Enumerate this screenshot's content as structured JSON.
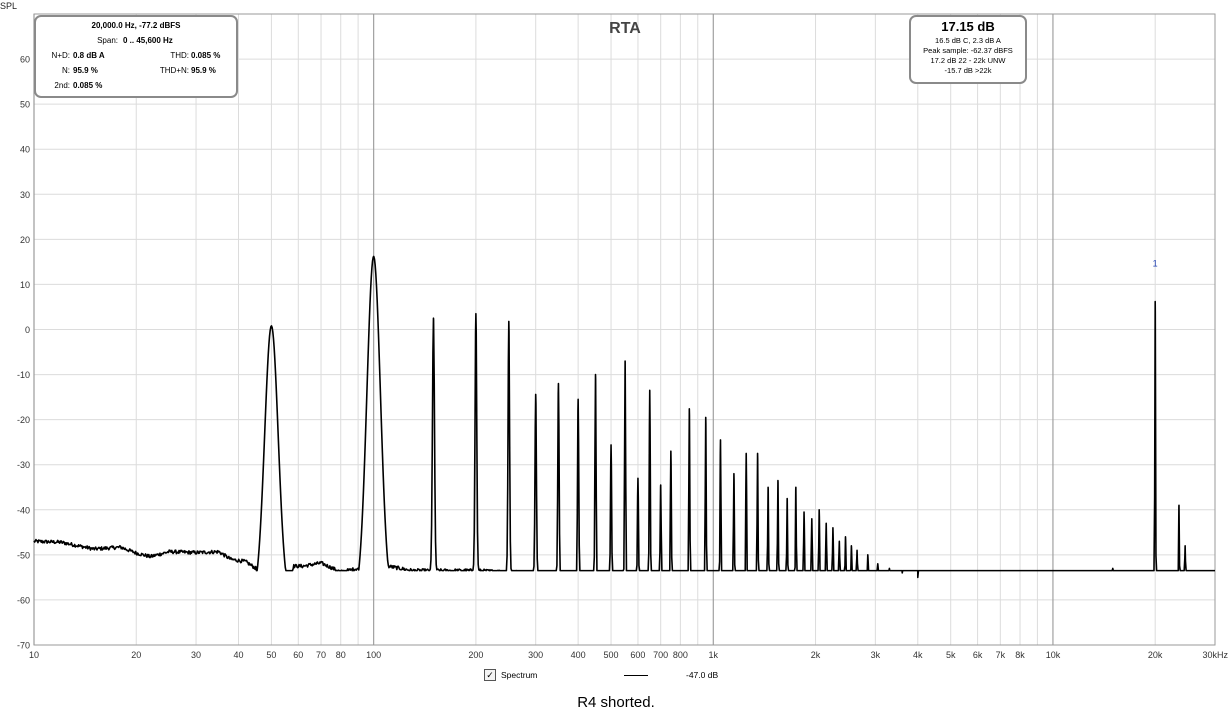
{
  "chart_data": {
    "type": "line",
    "title": "RTA",
    "ylabel": "SPL",
    "x_unit": "kHz",
    "x_scale": "log",
    "xlim": [
      10,
      30000
    ],
    "ylim": [
      -70,
      70
    ],
    "grid": true,
    "x_ticks": [
      {
        "v": 10,
        "label": "10"
      },
      {
        "v": 20,
        "label": "20"
      },
      {
        "v": 30,
        "label": "30"
      },
      {
        "v": 40,
        "label": "40"
      },
      {
        "v": 50,
        "label": "50"
      },
      {
        "v": 60,
        "label": "60"
      },
      {
        "v": 70,
        "label": "70"
      },
      {
        "v": 80,
        "label": "80"
      },
      {
        "v": 100,
        "label": "100"
      },
      {
        "v": 200,
        "label": "200"
      },
      {
        "v": 300,
        "label": "300"
      },
      {
        "v": 400,
        "label": "400"
      },
      {
        "v": 500,
        "label": "500"
      },
      {
        "v": 600,
        "label": "600"
      },
      {
        "v": 700,
        "label": "700"
      },
      {
        "v": 800,
        "label": "800"
      },
      {
        "v": 1000,
        "label": "1k"
      },
      {
        "v": 2000,
        "label": "2k"
      },
      {
        "v": 3000,
        "label": "3k"
      },
      {
        "v": 4000,
        "label": "4k"
      },
      {
        "v": 5000,
        "label": "5k"
      },
      {
        "v": 6000,
        "label": "6k"
      },
      {
        "v": 7000,
        "label": "7k"
      },
      {
        "v": 8000,
        "label": "8k"
      },
      {
        "v": 10000,
        "label": "10k"
      },
      {
        "v": 20000,
        "label": "20k"
      },
      {
        "v": 30000,
        "label": "30kHz"
      }
    ],
    "y_ticks": [
      60,
      50,
      40,
      30,
      20,
      10,
      0,
      -10,
      -20,
      -30,
      -40,
      -50,
      -60,
      -70
    ],
    "series": [
      {
        "name": "Spectrum",
        "color": "#000000",
        "baseline": [
          [
            10,
            -47
          ],
          [
            12,
            -47.2
          ],
          [
            15,
            -48.7
          ],
          [
            18,
            -48.3
          ],
          [
            20,
            -49.6
          ],
          [
            22,
            -50.4
          ],
          [
            25,
            -49.3
          ],
          [
            30,
            -49.5
          ],
          [
            35,
            -49.3
          ],
          [
            38,
            -51
          ],
          [
            42,
            -51.5
          ],
          [
            45,
            -53
          ],
          [
            47,
            -60
          ],
          [
            56,
            -60
          ],
          [
            58,
            -52.5
          ],
          [
            62,
            -52.5
          ],
          [
            70,
            -51.8
          ],
          [
            80,
            -53.8
          ],
          [
            90,
            -53
          ],
          [
            95,
            -60
          ],
          [
            105,
            -60
          ],
          [
            110,
            -52.5
          ],
          [
            130,
            -53.5
          ],
          [
            200,
            -53.5
          ],
          [
            300,
            -54
          ],
          [
            400,
            -55.5
          ],
          [
            500,
            -56
          ],
          [
            600,
            -56.2
          ],
          [
            1000,
            -56.8
          ],
          [
            2000,
            -57
          ],
          [
            5000,
            -57.5
          ],
          [
            10000,
            -58
          ],
          [
            20000,
            -57.5
          ],
          [
            30000,
            -57
          ]
        ],
        "peaks": [
          {
            "f": 50,
            "level": 0.8,
            "shape": "wide"
          },
          {
            "f": 100,
            "level": 16.2,
            "shape": "wide"
          },
          {
            "f": 150,
            "level": 2.5
          },
          {
            "f": 200,
            "level": 3.5
          },
          {
            "f": 250,
            "level": 1.8
          },
          {
            "f": 300,
            "level": -14.4
          },
          {
            "f": 350,
            "level": -12
          },
          {
            "f": 400,
            "level": -15.5
          },
          {
            "f": 450,
            "level": -10
          },
          {
            "f": 500,
            "level": -25.6
          },
          {
            "f": 550,
            "level": -7
          },
          {
            "f": 600,
            "level": -33
          },
          {
            "f": 650,
            "level": -13.5
          },
          {
            "f": 700,
            "level": -34.5
          },
          {
            "f": 750,
            "level": -27
          },
          {
            "f": 850,
            "level": -17.6
          },
          {
            "f": 950,
            "level": -19.5
          },
          {
            "f": 1050,
            "level": -24.5
          },
          {
            "f": 1150,
            "level": -32
          },
          {
            "f": 1250,
            "level": -27.5
          },
          {
            "f": 1350,
            "level": -27.5
          },
          {
            "f": 1450,
            "level": -35
          },
          {
            "f": 1550,
            "level": -33.5
          },
          {
            "f": 1650,
            "level": -37.5
          },
          {
            "f": 1750,
            "level": -35
          },
          {
            "f": 1850,
            "level": -40.5
          },
          {
            "f": 1950,
            "level": -42
          },
          {
            "f": 2050,
            "level": -40
          },
          {
            "f": 2150,
            "level": -43
          },
          {
            "f": 2250,
            "level": -44
          },
          {
            "f": 2350,
            "level": -47
          },
          {
            "f": 2450,
            "level": -46
          },
          {
            "f": 2550,
            "level": -48
          },
          {
            "f": 2650,
            "level": -49
          },
          {
            "f": 2850,
            "level": -50
          },
          {
            "f": 3050,
            "level": -52
          },
          {
            "f": 3300,
            "level": -53
          },
          {
            "f": 3600,
            "level": -54
          },
          {
            "f": 4000,
            "level": -55
          },
          {
            "f": 15000,
            "level": -53
          },
          {
            "f": 20000,
            "level": 6.2
          },
          {
            "f": 23500,
            "level": -39
          },
          {
            "f": 24500,
            "level": -48
          }
        ]
      }
    ],
    "annotations": [
      {
        "f": 20000,
        "level": 6.2,
        "text": "1",
        "color": "#1f3fb0"
      }
    ]
  },
  "measurement_box": {
    "cursor": "20,000.0 Hz, -77.2 dBFS",
    "span_label": "Span:",
    "span_value": "0 .. 45,600 Hz",
    "nd_label": "N+D:",
    "nd_value": "0.8 dB A",
    "thd_label": "THD:",
    "thd_value": "0.085 %",
    "n_label": "N:",
    "n_value": "95.9 %",
    "thdn_label": "THD+N:",
    "thdn_value": "95.9 %",
    "second_label": "2nd:",
    "second_value": "0.085 %"
  },
  "level_box": {
    "level": "17.15 dB",
    "line1": "16.5 dB C, 2.3 dB A",
    "line2": "Peak sample: -62.37 dBFS",
    "line3": "17.2 dB 22 - 22k UNW",
    "line4": "-15.7 dB >22k"
  },
  "legend": {
    "checked": true,
    "check_glyph": "✓",
    "label": "Spectrum",
    "level": "-47.0 dB"
  },
  "caption": "R4 shorted."
}
